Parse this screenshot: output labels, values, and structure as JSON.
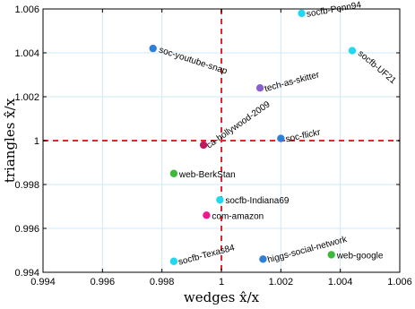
{
  "chart_data": {
    "type": "scatter",
    "xlabel": "wedges  x̂/x",
    "ylabel": "triangles  x̂/x",
    "xlim": [
      0.994,
      1.006
    ],
    "ylim": [
      0.994,
      1.006
    ],
    "x_ticks": [
      "0.994",
      "0.996",
      "0.998",
      "1",
      "1.002",
      "1.004",
      "1.006"
    ],
    "y_ticks": [
      "0.994",
      "0.996",
      "0.998",
      "1",
      "1.002",
      "1.004",
      "1.006"
    ],
    "reference_lines": {
      "x": 1,
      "y": 1,
      "color": "#e8232b",
      "style": "dashed"
    },
    "grid": true,
    "points": [
      {
        "label": "socfb-Penn94",
        "x": 1.0027,
        "y": 1.0058,
        "color": "#22d8f0",
        "label_angle": -10
      },
      {
        "label": "soc-youtube-snap",
        "x": 0.9977,
        "y": 1.0042,
        "color": "#2f7fd8",
        "label_angle": 18
      },
      {
        "label": "socfb-UF21",
        "x": 1.0044,
        "y": 1.0041,
        "color": "#22d8f0",
        "label_angle": 40
      },
      {
        "label": "tech-as-skitter",
        "x": 1.0013,
        "y": 1.0024,
        "color": "#8a5fd0",
        "label_angle": -15
      },
      {
        "label": "ca-hollywood-2009",
        "x": 0.9994,
        "y": 0.9998,
        "color": "#c2185b",
        "label_angle": -35
      },
      {
        "label": "soc-flickr",
        "x": 1.002,
        "y": 1.0001,
        "color": "#2f7fd8",
        "label_angle": -12
      },
      {
        "label": "web-BerkStan",
        "x": 0.9984,
        "y": 0.9985,
        "color": "#3db83d",
        "label_angle": 0
      },
      {
        "label": "socfb-Indiana69",
        "x": 0.99995,
        "y": 0.9973,
        "color": "#22d8f0",
        "label_angle": 0
      },
      {
        "label": "com-amazon",
        "x": 0.9995,
        "y": 0.9966,
        "color": "#ec1a8c",
        "label_angle": 0
      },
      {
        "label": "socfb-Texas84",
        "x": 0.9984,
        "y": 0.9945,
        "color": "#22d8f0",
        "label_angle": -15
      },
      {
        "label": "higgs-social-network",
        "x": 1.0014,
        "y": 0.9946,
        "color": "#2f7fd8",
        "label_angle": -15
      },
      {
        "label": "web-google",
        "x": 1.0037,
        "y": 0.9948,
        "color": "#3db83d",
        "label_angle": 0
      }
    ]
  }
}
